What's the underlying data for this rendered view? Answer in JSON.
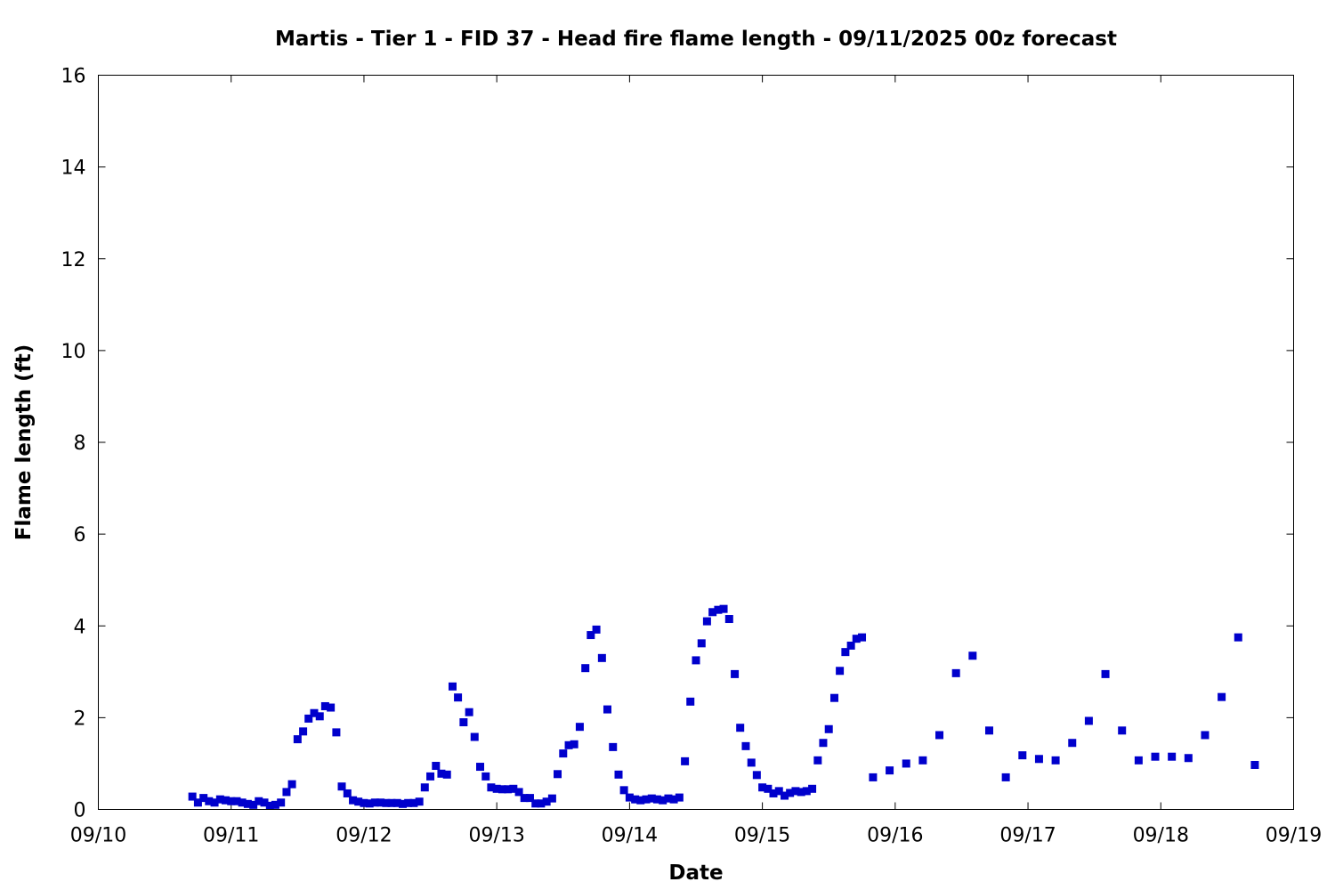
{
  "chart_data": {
    "type": "scatter",
    "title": "Martis - Tier 1 - FID 37 - Head fire flame length - 09/11/2025 00z forecast",
    "xlabel": "Date",
    "ylabel": "Flame length (ft)",
    "x_unit": "days",
    "xlim": [
      0,
      9
    ],
    "ylim": [
      0,
      16
    ],
    "x_ticks": [
      {
        "value": 0,
        "label": "09/10"
      },
      {
        "value": 1,
        "label": "09/11"
      },
      {
        "value": 2,
        "label": "09/12"
      },
      {
        "value": 3,
        "label": "09/13"
      },
      {
        "value": 4,
        "label": "09/14"
      },
      {
        "value": 5,
        "label": "09/15"
      },
      {
        "value": 6,
        "label": "09/16"
      },
      {
        "value": 7,
        "label": "09/17"
      },
      {
        "value": 8,
        "label": "09/18"
      },
      {
        "value": 9,
        "label": "09/19"
      }
    ],
    "y_ticks": [
      0,
      2,
      4,
      6,
      8,
      10,
      12,
      14,
      16
    ],
    "grid": false,
    "marker_color": "#0000cc",
    "series": [
      {
        "points": [
          [
            0.708,
            0.28
          ],
          [
            0.75,
            0.15
          ],
          [
            0.792,
            0.25
          ],
          [
            0.833,
            0.18
          ],
          [
            0.875,
            0.15
          ],
          [
            0.917,
            0.22
          ],
          [
            0.958,
            0.2
          ],
          [
            1.0,
            0.18
          ],
          [
            1.042,
            0.18
          ],
          [
            1.083,
            0.15
          ],
          [
            1.125,
            0.12
          ],
          [
            1.167,
            0.1
          ],
          [
            1.208,
            0.18
          ],
          [
            1.25,
            0.15
          ],
          [
            1.292,
            0.08
          ],
          [
            1.333,
            0.1
          ],
          [
            1.375,
            0.15
          ],
          [
            1.417,
            0.38
          ],
          [
            1.458,
            0.55
          ],
          [
            1.5,
            1.53
          ],
          [
            1.542,
            1.7
          ],
          [
            1.583,
            1.98
          ],
          [
            1.625,
            2.1
          ],
          [
            1.667,
            2.03
          ],
          [
            1.708,
            2.25
          ],
          [
            1.75,
            2.22
          ],
          [
            1.792,
            1.68
          ],
          [
            1.833,
            0.5
          ],
          [
            1.875,
            0.35
          ],
          [
            1.917,
            0.2
          ],
          [
            1.958,
            0.17
          ],
          [
            2.0,
            0.14
          ],
          [
            2.042,
            0.13
          ],
          [
            2.083,
            0.15
          ],
          [
            2.125,
            0.15
          ],
          [
            2.167,
            0.14
          ],
          [
            2.208,
            0.14
          ],
          [
            2.25,
            0.14
          ],
          [
            2.292,
            0.12
          ],
          [
            2.333,
            0.14
          ],
          [
            2.375,
            0.14
          ],
          [
            2.417,
            0.17
          ],
          [
            2.458,
            0.48
          ],
          [
            2.5,
            0.72
          ],
          [
            2.542,
            0.95
          ],
          [
            2.583,
            0.78
          ],
          [
            2.625,
            0.76
          ],
          [
            2.667,
            2.68
          ],
          [
            2.708,
            2.44
          ],
          [
            2.75,
            1.9
          ],
          [
            2.792,
            2.12
          ],
          [
            2.833,
            1.58
          ],
          [
            2.875,
            0.93
          ],
          [
            2.917,
            0.72
          ],
          [
            2.958,
            0.48
          ],
          [
            3.0,
            0.45
          ],
          [
            3.042,
            0.44
          ],
          [
            3.083,
            0.44
          ],
          [
            3.125,
            0.45
          ],
          [
            3.167,
            0.38
          ],
          [
            3.208,
            0.25
          ],
          [
            3.25,
            0.25
          ],
          [
            3.292,
            0.13
          ],
          [
            3.333,
            0.13
          ],
          [
            3.375,
            0.17
          ],
          [
            3.417,
            0.24
          ],
          [
            3.458,
            0.77
          ],
          [
            3.5,
            1.22
          ],
          [
            3.542,
            1.4
          ],
          [
            3.583,
            1.42
          ],
          [
            3.625,
            1.8
          ],
          [
            3.667,
            3.08
          ],
          [
            3.708,
            3.8
          ],
          [
            3.75,
            3.92
          ],
          [
            3.792,
            3.3
          ],
          [
            3.833,
            2.18
          ],
          [
            3.875,
            1.36
          ],
          [
            3.917,
            0.76
          ],
          [
            3.958,
            0.42
          ],
          [
            4.0,
            0.26
          ],
          [
            4.042,
            0.22
          ],
          [
            4.083,
            0.2
          ],
          [
            4.125,
            0.22
          ],
          [
            4.167,
            0.24
          ],
          [
            4.208,
            0.22
          ],
          [
            4.25,
            0.2
          ],
          [
            4.292,
            0.24
          ],
          [
            4.333,
            0.22
          ],
          [
            4.375,
            0.26
          ],
          [
            4.417,
            1.05
          ],
          [
            4.458,
            2.35
          ],
          [
            4.5,
            3.25
          ],
          [
            4.542,
            3.62
          ],
          [
            4.583,
            4.1
          ],
          [
            4.625,
            4.3
          ],
          [
            4.667,
            4.35
          ],
          [
            4.708,
            4.37
          ],
          [
            4.75,
            4.15
          ],
          [
            4.792,
            2.95
          ],
          [
            4.833,
            1.78
          ],
          [
            4.875,
            1.38
          ],
          [
            4.917,
            1.02
          ],
          [
            4.958,
            0.75
          ],
          [
            5.0,
            0.48
          ],
          [
            5.042,
            0.45
          ],
          [
            5.083,
            0.35
          ],
          [
            5.125,
            0.4
          ],
          [
            5.167,
            0.3
          ],
          [
            5.208,
            0.36
          ],
          [
            5.25,
            0.4
          ],
          [
            5.292,
            0.38
          ],
          [
            5.333,
            0.4
          ],
          [
            5.375,
            0.45
          ],
          [
            5.417,
            1.07
          ],
          [
            5.458,
            1.45
          ],
          [
            5.5,
            1.75
          ],
          [
            5.542,
            2.43
          ],
          [
            5.583,
            3.02
          ],
          [
            5.625,
            3.43
          ],
          [
            5.667,
            3.57
          ],
          [
            5.708,
            3.72
          ],
          [
            5.75,
            3.75
          ],
          [
            5.833,
            0.7
          ],
          [
            5.958,
            0.85
          ],
          [
            6.083,
            1.0
          ],
          [
            6.208,
            1.07
          ],
          [
            6.333,
            1.62
          ],
          [
            6.458,
            2.97
          ],
          [
            6.583,
            3.35
          ],
          [
            6.708,
            1.72
          ],
          [
            6.833,
            0.7
          ],
          [
            6.958,
            1.18
          ],
          [
            7.083,
            1.1
          ],
          [
            7.208,
            1.07
          ],
          [
            7.333,
            1.45
          ],
          [
            7.458,
            1.93
          ],
          [
            7.583,
            2.95
          ],
          [
            7.708,
            1.72
          ],
          [
            7.833,
            1.07
          ],
          [
            7.958,
            1.15
          ],
          [
            8.083,
            1.15
          ],
          [
            8.208,
            1.12
          ],
          [
            8.333,
            1.62
          ],
          [
            8.458,
            2.45
          ],
          [
            8.583,
            3.75
          ],
          [
            8.708,
            0.97
          ]
        ]
      }
    ]
  }
}
